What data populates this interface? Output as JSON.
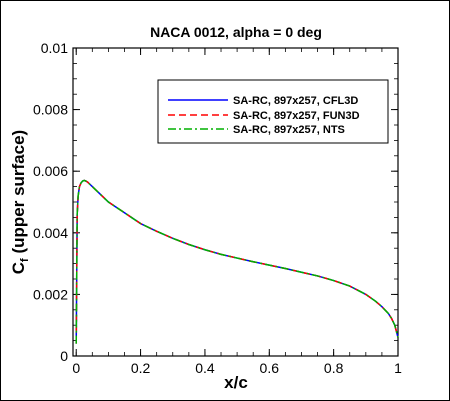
{
  "chart_data": {
    "type": "line",
    "title": "NACA 0012, alpha = 0 deg",
    "xlabel": "x/c",
    "ylabel_main": "C",
    "ylabel_sub": "f",
    "ylabel_rest": " (upper surface)",
    "xlim": [
      -0.01,
      1.0
    ],
    "ylim": [
      0,
      0.01
    ],
    "xticks": [
      0,
      0.2,
      0.4,
      0.6,
      0.8,
      1
    ],
    "xtick_labels": [
      "0",
      "0.2",
      "0.4",
      "0.6",
      "0.8",
      "1"
    ],
    "yticks": [
      0,
      0.002,
      0.004,
      0.006,
      0.008,
      0.01
    ],
    "ytick_labels": [
      "0",
      "0.002",
      "0.004",
      "0.006",
      "0.008",
      "0.01"
    ],
    "grid": false,
    "legend_position": "top-right",
    "x": [
      0.0,
      0.003,
      0.006,
      0.01,
      0.015,
      0.02,
      0.025,
      0.03,
      0.035,
      0.04,
      0.05,
      0.06,
      0.08,
      0.1,
      0.15,
      0.2,
      0.25,
      0.3,
      0.35,
      0.4,
      0.45,
      0.5,
      0.55,
      0.6,
      0.65,
      0.7,
      0.75,
      0.8,
      0.85,
      0.9,
      0.93,
      0.95,
      0.97,
      0.98,
      0.99,
      0.995,
      1.0
    ],
    "series": [
      {
        "name": "SA-RC, 897x257, CFL3D",
        "color": "#0000ff",
        "dash": "solid",
        "values": [
          0.0004,
          0.0046,
          0.0052,
          0.0055,
          0.00562,
          0.00568,
          0.0057,
          0.00568,
          0.00565,
          0.0056,
          0.0055,
          0.0054,
          0.0052,
          0.005,
          0.00465,
          0.0043,
          0.00405,
          0.00382,
          0.00362,
          0.00345,
          0.0033,
          0.00318,
          0.00306,
          0.00295,
          0.00284,
          0.00272,
          0.0026,
          0.00245,
          0.00227,
          0.002,
          0.00178,
          0.0016,
          0.00138,
          0.00122,
          0.001,
          0.0008,
          0.0006
        ]
      },
      {
        "name": "SA-RC, 897x257, FUN3D",
        "color": "#ff0000",
        "dash": "dashed",
        "values": [
          0.0004,
          0.0046,
          0.0052,
          0.0055,
          0.00562,
          0.00568,
          0.0057,
          0.00568,
          0.00565,
          0.0056,
          0.0055,
          0.0054,
          0.0052,
          0.005,
          0.00465,
          0.0043,
          0.00405,
          0.00382,
          0.00362,
          0.00345,
          0.0033,
          0.00318,
          0.00306,
          0.00295,
          0.00284,
          0.00272,
          0.0026,
          0.00245,
          0.00227,
          0.002,
          0.00178,
          0.0016,
          0.00138,
          0.00122,
          0.001,
          0.0008,
          0.0006
        ]
      },
      {
        "name": "SA-RC, 897x257, NTS",
        "color": "#00b000",
        "dash": "dashdot",
        "values": [
          0.0004,
          0.0046,
          0.0052,
          0.0055,
          0.00562,
          0.00568,
          0.0057,
          0.00568,
          0.00565,
          0.0056,
          0.0055,
          0.0054,
          0.0052,
          0.005,
          0.00465,
          0.0043,
          0.00405,
          0.00382,
          0.00362,
          0.00345,
          0.0033,
          0.00318,
          0.00306,
          0.00295,
          0.00284,
          0.00272,
          0.0026,
          0.00245,
          0.00227,
          0.002,
          0.00178,
          0.0016,
          0.00138,
          0.00122,
          0.001,
          0.0008,
          0.0006
        ]
      }
    ]
  }
}
